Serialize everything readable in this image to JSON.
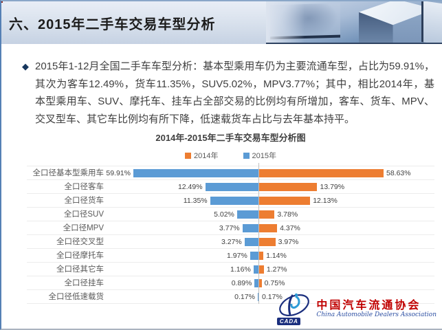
{
  "header": {
    "title": "六、2015年二手车交易车型分析"
  },
  "intro": {
    "bullet": "◆",
    "text": "2015年1-12月全国二手车车型分析：基本型乘用车仍为主要流通车型，占比为59.91%，其次为客车12.49%，货车11.35%，SUV5.02%，MPV3.77%；其中，相比2014年，基本型乘用车、SUV、摩托车、挂车占全部交易的比例均有所增加，客车、货车、MPV、交叉型车、其它车比例均有所下降，低速载货车占比与去年基本持平。"
  },
  "chart_data": {
    "type": "bar",
    "variant": "horizontal-butterfly",
    "title": "2014年-2015年二手车交易车型分析图",
    "categories": [
      "全口径基本型乘用车",
      "全口径客车",
      "全口径货车",
      "全口径SUV",
      "全口径MPV",
      "全口径交叉型",
      "全口径摩托车",
      "全口径其它车",
      "全口径挂车",
      "全口径低速载货"
    ],
    "series": [
      {
        "name": "2014年",
        "side": "right",
        "color": "#ed7d31",
        "values": [
          58.63,
          13.79,
          12.13,
          3.78,
          4.37,
          3.97,
          1.14,
          1.27,
          0.75,
          0.17
        ]
      },
      {
        "name": "2015年",
        "side": "left",
        "color": "#5b9bd5",
        "values": [
          59.91,
          12.49,
          11.35,
          5.02,
          3.77,
          3.27,
          1.97,
          1.16,
          0.89,
          0.17
        ]
      }
    ],
    "value_suffix": "%",
    "axis_max_per_side_percent": 30,
    "legend_position": "top",
    "grid": "horizontal-row-lines"
  },
  "logo": {
    "abbr": "CADA",
    "name_cn": "中国汽车流通协会",
    "name_en": "China Automobile Dealers Association"
  }
}
